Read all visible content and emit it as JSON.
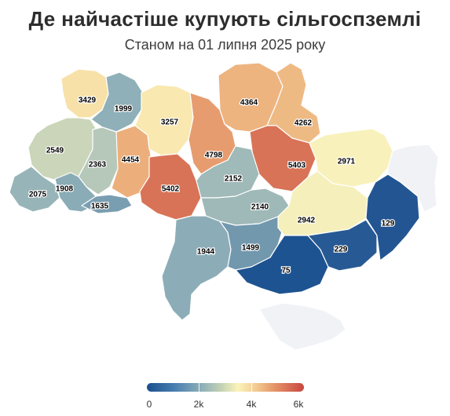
{
  "header": {
    "title": "Де найчастіше купують сільгоспземлі",
    "subtitle": "Станом на 01 липня 2025 року"
  },
  "legend": {
    "labels": [
      "0",
      "2k",
      "4k",
      "6k"
    ],
    "colors": [
      "#1a4f8f",
      "#8fb0b8",
      "#fbf3bb",
      "#c8473f"
    ]
  },
  "chart_data": {
    "type": "choropleth",
    "value_range": [
      0,
      6000
    ],
    "regions": [
      {
        "id": "volyn",
        "value": 3429
      },
      {
        "id": "rivne",
        "value": 1999
      },
      {
        "id": "lviv",
        "value": 2549
      },
      {
        "id": "ternopil",
        "value": 2363
      },
      {
        "id": "zakarpattia",
        "value": 2075
      },
      {
        "id": "ivano-frankivsk",
        "value": 1908
      },
      {
        "id": "chernivtsi",
        "value": 1635
      },
      {
        "id": "khmelnytskyi",
        "value": 4454
      },
      {
        "id": "zhytomyr",
        "value": 3257
      },
      {
        "id": "vinnytsia",
        "value": 5402
      },
      {
        "id": "kyiv",
        "value": 4798
      },
      {
        "id": "chernihiv",
        "value": 4364
      },
      {
        "id": "sumy",
        "value": 4262
      },
      {
        "id": "poltava",
        "value": 5403
      },
      {
        "id": "kharkiv",
        "value": 2971
      },
      {
        "id": "cherkasy",
        "value": 2152
      },
      {
        "id": "kirovohrad",
        "value": 2140
      },
      {
        "id": "odesa",
        "value": 1944
      },
      {
        "id": "mykolaiv",
        "value": 1499
      },
      {
        "id": "dnipropetrovsk",
        "value": 2942
      },
      {
        "id": "kherson",
        "value": 75
      },
      {
        "id": "zaporizhzhia",
        "value": 229
      },
      {
        "id": "donetsk",
        "value": 129
      },
      {
        "id": "luhansk",
        "value": null
      },
      {
        "id": "crimea",
        "value": null
      }
    ]
  }
}
